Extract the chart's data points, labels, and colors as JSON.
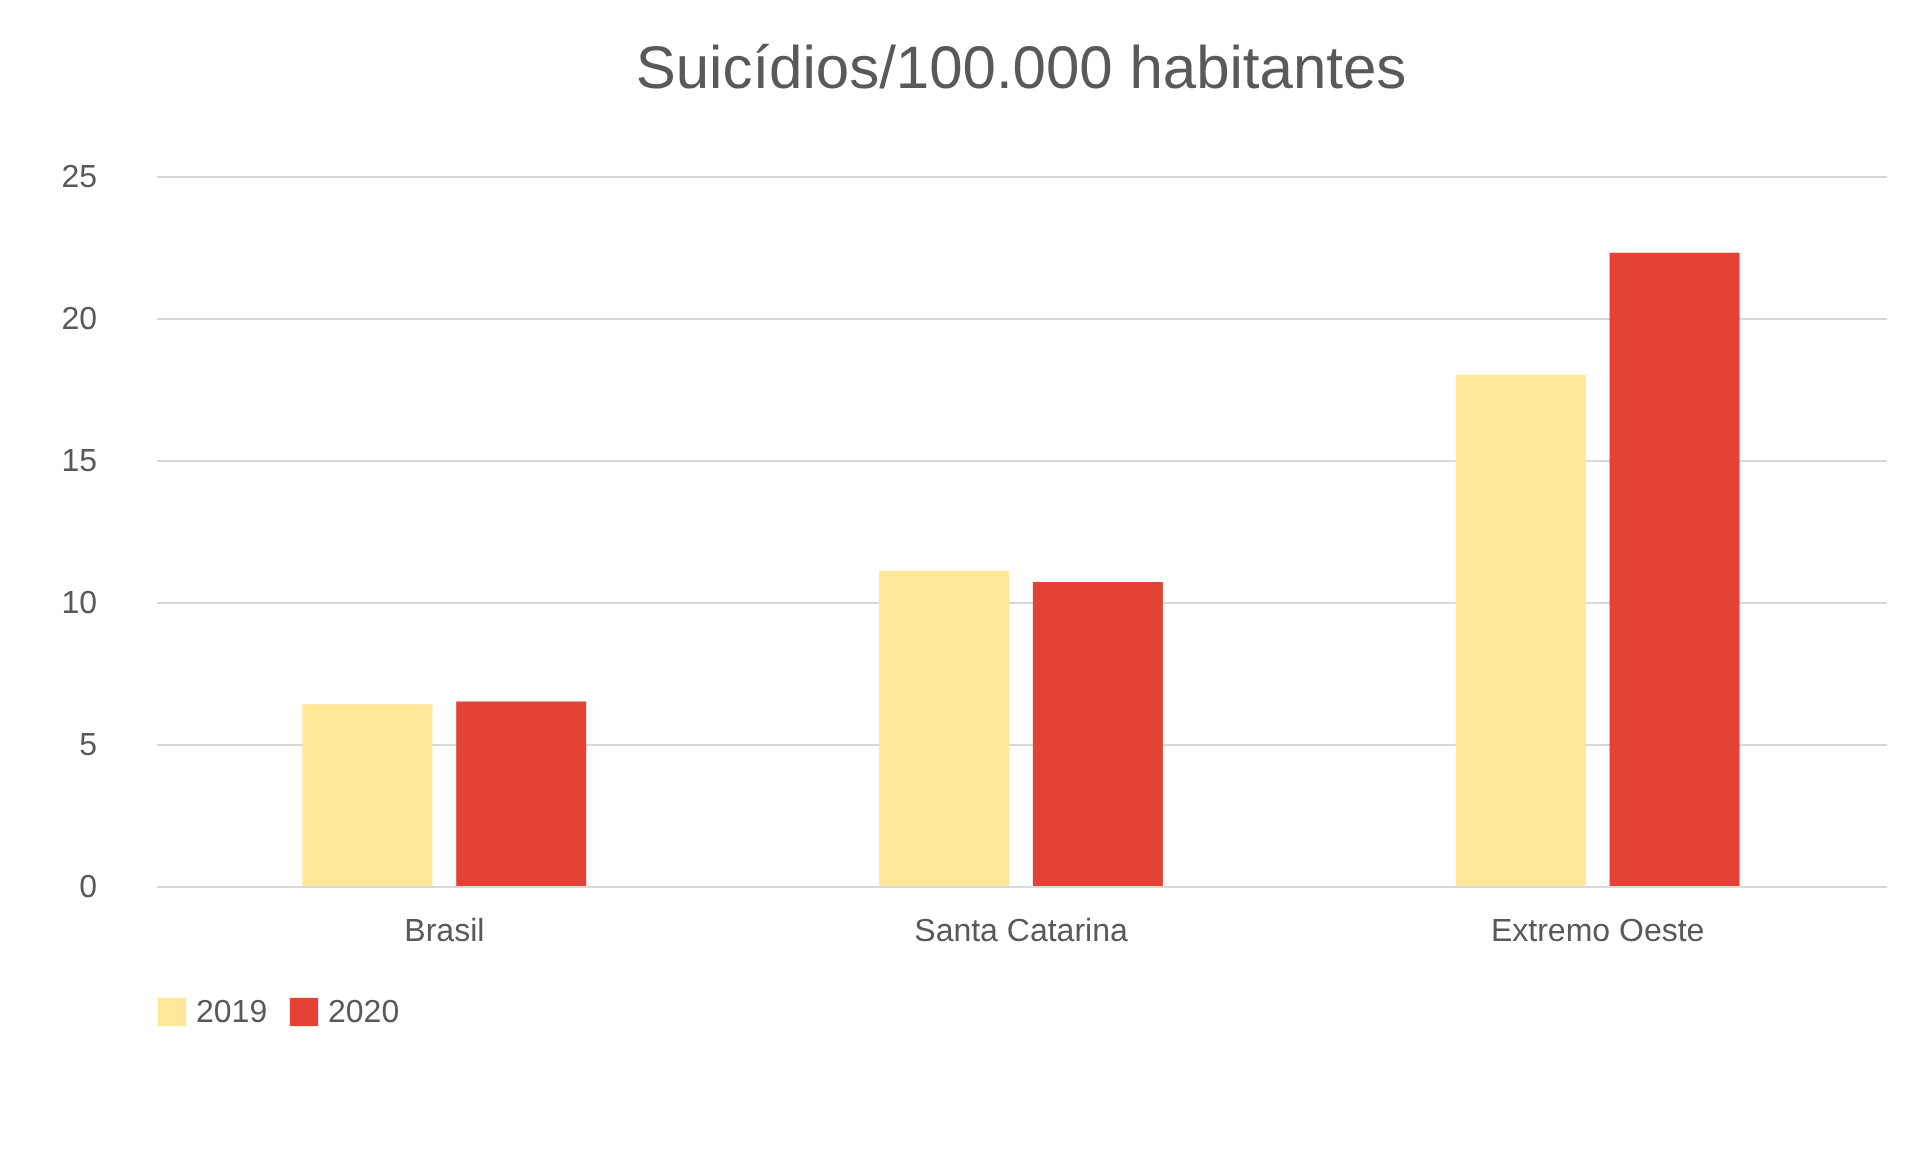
{
  "chart_data": {
    "type": "bar",
    "title": "Suicídios/100.000 habitantes",
    "categories": [
      "Brasil",
      "Santa Catarina",
      "Extremo Oeste"
    ],
    "series": [
      {
        "name": "2019",
        "color": "#ffe699",
        "values": [
          6.4,
          11.1,
          18.0
        ]
      },
      {
        "name": "2020",
        "color": "#e34234",
        "values": [
          6.5,
          10.7,
          22.3
        ]
      }
    ],
    "ylim": [
      0,
      25
    ],
    "yticks": [
      0,
      5,
      10,
      15,
      20,
      25
    ],
    "grid": "y",
    "legend": "bottom"
  }
}
